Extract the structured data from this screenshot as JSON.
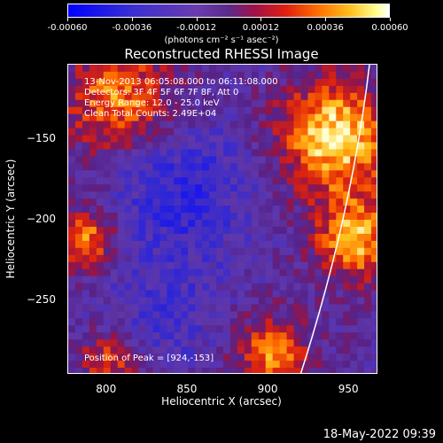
{
  "colorbar": {
    "ticks": [
      "-0.00060",
      "-0.00036",
      "-0.00012",
      "0.00012",
      "0.00036",
      "0.00060"
    ],
    "units_label": "(photons cm⁻² s⁻¹ asec⁻²)"
  },
  "chart_data": {
    "type": "heatmap",
    "title": "Reconstructed RHESSI Image",
    "xlabel": "Heliocentric X (arcsec)",
    "ylabel": "Heliocentric Y (arcsec)",
    "xlim": [
      776,
      968
    ],
    "ylim": [
      -296,
      -104
    ],
    "xticks": [
      "800",
      "850",
      "900",
      "950"
    ],
    "yticks": [
      "-150",
      "-200",
      "-250"
    ],
    "zlim": [
      -0.0006,
      0.0006
    ],
    "annotations": [
      "13-Nov-2013 06:05:08.000 to 06:11:08.000",
      "Detectors: 3F 4F 5F 6F 7F 8F, Att 0",
      "Energy Range: 12.0 - 25.0 keV",
      "Clean Total Counts: 2.49E+04"
    ],
    "peak_label": "Position of Peak = [924,-153]",
    "limb_arc": "white solar limb curve"
  },
  "timestamp": "18-May-2022 09:39"
}
